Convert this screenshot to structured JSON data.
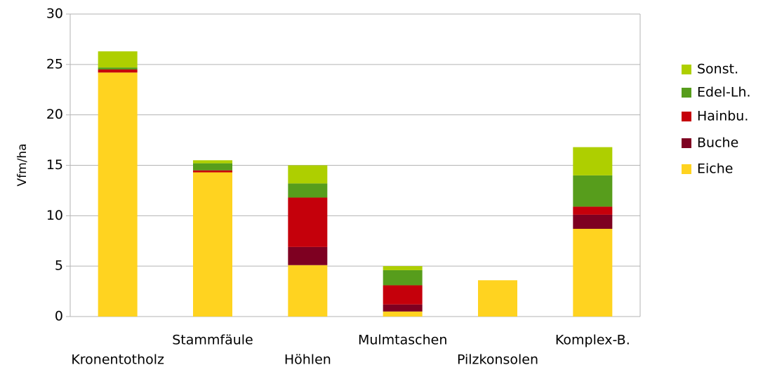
{
  "chart_data": {
    "type": "stacked-bar",
    "y_label": "Vfm/ha",
    "categories": [
      "Kronentotholz",
      "Stammfäule",
      "Höhlen",
      "Mulmtaschen",
      "Pilzkonsolen",
      "Komplex-B."
    ],
    "series": [
      {
        "name": "Eiche",
        "color": "#ffd320",
        "values": [
          24.2,
          14.3,
          5.1,
          0.5,
          3.6,
          8.7
        ]
      },
      {
        "name": "Buche",
        "color": "#7e0021",
        "values": [
          0,
          0,
          1.8,
          0.7,
          0,
          1.4
        ]
      },
      {
        "name": "Hainbu.",
        "color": "#c5000b",
        "values": [
          0.3,
          0.2,
          4.9,
          1.9,
          0,
          0.8
        ]
      },
      {
        "name": "Edel-Lh.",
        "color": "#579d1c",
        "values": [
          0.2,
          0.7,
          1.4,
          1.5,
          0,
          3.1
        ]
      },
      {
        "name": "Sonst.",
        "color": "#aecf00",
        "values": [
          1.6,
          0.3,
          1.8,
          0.4,
          0,
          2.8
        ]
      }
    ],
    "ylim": [
      0,
      30
    ],
    "yticks": [
      0,
      5,
      10,
      15,
      20,
      25,
      30
    ],
    "grid": true,
    "legend": "right"
  }
}
